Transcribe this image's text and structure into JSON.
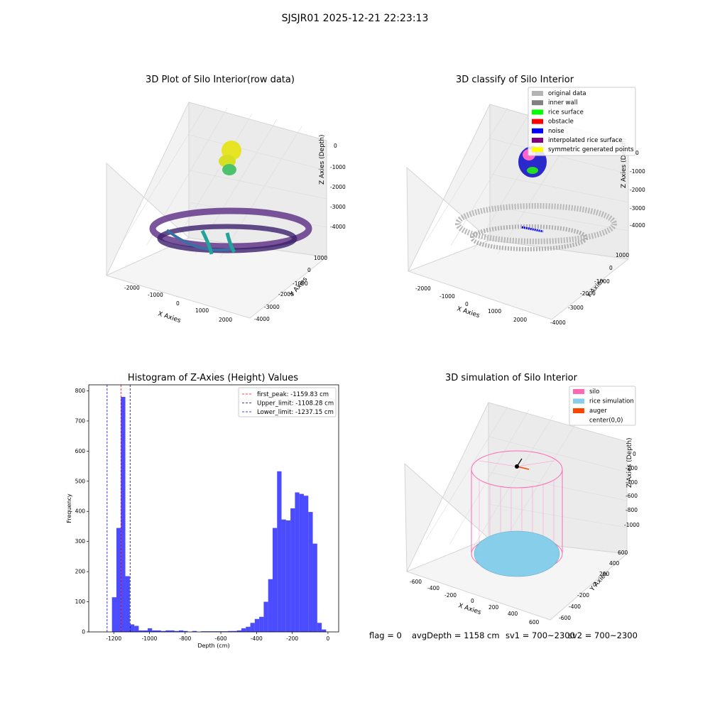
{
  "suptitle": "SJSJR01 2025-12-21 22:23:13",
  "panels": {
    "raw": {
      "title": "3D Plot of Silo Interior(row data)",
      "xlabel": "X Axies",
      "ylabel": "Y Axies",
      "zlabel": "Z Axies (Depth)",
      "xticks": [
        "-2000",
        "-1000",
        "0",
        "1000",
        "2000"
      ],
      "yticks": [
        "1000",
        "0",
        "-1000",
        "-2000",
        "-3000",
        "-4000"
      ],
      "zticks": [
        "0",
        "-1000",
        "-2000",
        "-3000",
        "-4000"
      ]
    },
    "classify": {
      "title": "3D classify of Silo Interior",
      "xlabel": "X Axies",
      "ylabel": "Y Axies",
      "zlabel": "Z Axies (Depth)",
      "xticks": [
        "-2000",
        "-1000",
        "0",
        "1000",
        "2000"
      ],
      "yticks": [
        "1000",
        "0",
        "-1000",
        "-2000",
        "-3000",
        "-4000"
      ],
      "zticks": [
        "0",
        "-1000",
        "-2000",
        "-3000",
        "-4000"
      ],
      "legend": [
        {
          "label": "original data",
          "color": "#b3b3b3"
        },
        {
          "label": "inner wall",
          "color": "#808080"
        },
        {
          "label": "rice surface",
          "color": "#00ff00"
        },
        {
          "label": "obstacle",
          "color": "#ff0000"
        },
        {
          "label": "noise",
          "color": "#0000ff"
        },
        {
          "label": "interpolated rice surface",
          "color": "#800080"
        },
        {
          "label": "symmetric generated points",
          "color": "#ffff00"
        }
      ]
    },
    "simulation": {
      "title": "3D simulation of Silo Interior",
      "xlabel": "X Axies",
      "ylabel": "Y Axies",
      "zlabel": "Z Axies (Depth)",
      "xticks": [
        "-600",
        "-400",
        "-200",
        "0",
        "200",
        "400",
        "600"
      ],
      "yticks": [
        "600",
        "400",
        "200",
        "0",
        "-200",
        "-400",
        "-600"
      ],
      "zticks": [
        "0",
        "-200",
        "-400",
        "-600",
        "-800",
        "-1000"
      ],
      "legend": [
        {
          "label": "silo",
          "color": "#ff69b4"
        },
        {
          "label": "rice simulation",
          "color": "#87ceeb"
        },
        {
          "label": "auger",
          "color": "#ff4500"
        },
        {
          "label": "center(0,0)",
          "color": ""
        }
      ]
    }
  },
  "status": {
    "flag": "flag = 0",
    "avg": "avgDepth = 1158 cm",
    "sv1": "sv1 = 700~2300",
    "sv2": "sv2 = 700~2300"
  },
  "chart_data": {
    "type": "bar",
    "title": "Histogram of Z-Axies (Height) Values",
    "xlabel": "Depth (cm)",
    "ylabel": "Frequency",
    "xlim": [
      -1340,
      60
    ],
    "ylim": [
      0,
      820
    ],
    "xticks": [
      -1200,
      -1000,
      -800,
      -600,
      -400,
      -200,
      0
    ],
    "yticks": [
      0,
      100,
      200,
      300,
      400,
      500,
      600,
      700,
      800
    ],
    "bar_color": "#0000ff",
    "bin_width": 25,
    "bin_starts": [
      -1235,
      -1210,
      -1185,
      -1160,
      -1135,
      -1110,
      -1085,
      -1060,
      -1035,
      -1010,
      -985,
      -960,
      -935,
      -910,
      -885,
      -860,
      -835,
      -810,
      -785,
      -760,
      -735,
      -710,
      -685,
      -660,
      -635,
      -610,
      -585,
      -560,
      -535,
      -510,
      -485,
      -460,
      -435,
      -410,
      -385,
      -360,
      -335,
      -310,
      -285,
      -260,
      -235,
      -210,
      -185,
      -160,
      -135,
      -110,
      -85,
      -60,
      -35,
      -10
    ],
    "frequencies": [
      0,
      115,
      345,
      780,
      185,
      25,
      20,
      5,
      5,
      12,
      5,
      5,
      3,
      5,
      5,
      3,
      5,
      3,
      0,
      3,
      0,
      2,
      2,
      2,
      2,
      2,
      2,
      3,
      3,
      5,
      12,
      17,
      30,
      43,
      50,
      100,
      175,
      345,
      533,
      373,
      370,
      410,
      463,
      458,
      452,
      398,
      293,
      30,
      8,
      0
    ],
    "lines": [
      {
        "name": "first_peak: -1159.83 cm",
        "x": -1159.83,
        "color": "#ff0000"
      },
      {
        "name": "Upper_limit: -1108.28 cm",
        "x": -1108.28,
        "color": "#000080"
      },
      {
        "name": "Lower_limit: -1237.15 cm",
        "x": -1237.15,
        "color": "#0000ff"
      }
    ]
  }
}
